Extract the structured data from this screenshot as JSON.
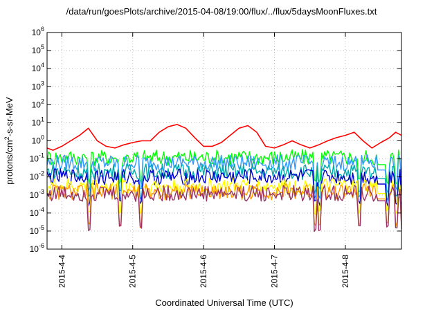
{
  "chart_data": {
    "type": "line",
    "title": "/data/run/goesPlots/archive/2015-04-08/19:00/flux/../flux/5daysMoonFluxes.txt",
    "xlabel": "Coordinated Universal Time (UTC)",
    "ylabel_parts": {
      "a": "protons/cm",
      "b": "2",
      "c": "-s-sr-MeV"
    },
    "yscale": "log",
    "ylim": [
      1e-06,
      1000000.0
    ],
    "y_ticks": [
      {
        "base": "10",
        "exp": "6"
      },
      {
        "base": "10",
        "exp": "5"
      },
      {
        "base": "10",
        "exp": "4"
      },
      {
        "base": "10",
        "exp": "3"
      },
      {
        "base": "10",
        "exp": "2"
      },
      {
        "base": "10",
        "exp": "1"
      },
      {
        "base": "10",
        "exp": "0"
      },
      {
        "base": "10",
        "exp": "-1"
      },
      {
        "base": "10",
        "exp": "-2"
      },
      {
        "base": "10",
        "exp": "-3"
      },
      {
        "base": "10",
        "exp": "-4"
      },
      {
        "base": "10",
        "exp": "-5"
      },
      {
        "base": "10",
        "exp": "-6"
      }
    ],
    "x_ticks": [
      "2015-4-4",
      "2015-4-5",
      "2015-4-6",
      "2015-4-7",
      "2015-4-8"
    ],
    "xlim": [
      "2015-04-03T19:00",
      "2015-04-08T19:00"
    ],
    "grid": true,
    "series": [
      {
        "color": "#ff0000",
        "x": [
          "2015-04-03T19:00",
          "2015-04-03T21:00",
          "2015-04-04T00:00",
          "2015-04-04T03:00",
          "2015-04-04T06:00",
          "2015-04-04T09:00",
          "2015-04-04T12:00",
          "2015-04-04T15:00",
          "2015-04-04T18:00",
          "2015-04-04T21:00",
          "2015-04-05T00:00",
          "2015-04-05T03:00",
          "2015-04-05T06:00",
          "2015-04-05T09:00",
          "2015-04-05T12:00",
          "2015-04-05T15:00",
          "2015-04-05T18:00",
          "2015-04-05T21:00",
          "2015-04-06T00:00",
          "2015-04-06T03:00",
          "2015-04-06T06:00",
          "2015-04-06T09:00",
          "2015-04-06T12:00",
          "2015-04-06T15:00",
          "2015-04-06T18:00",
          "2015-04-06T21:00",
          "2015-04-07T00:00",
          "2015-04-07T03:00",
          "2015-04-07T06:00",
          "2015-04-07T09:00",
          "2015-04-07T12:00",
          "2015-04-07T15:00",
          "2015-04-07T18:00",
          "2015-04-07T21:00",
          "2015-04-08T00:00",
          "2015-04-08T03:00",
          "2015-04-08T06:00",
          "2015-04-08T09:00",
          "2015-04-08T12:00",
          "2015-04-08T15:00",
          "2015-04-08T17:00",
          "2015-04-08T19:00"
        ],
        "y": [
          0.4,
          0.3,
          0.5,
          1.0,
          2.0,
          5.0,
          1.0,
          0.5,
          0.4,
          0.6,
          0.8,
          1.0,
          1.0,
          3.0,
          6.0,
          8.0,
          5.0,
          1.5,
          0.5,
          0.5,
          0.8,
          2.0,
          5.0,
          7.0,
          3.0,
          0.5,
          0.4,
          0.6,
          1.0,
          0.6,
          0.4,
          0.6,
          1.0,
          1.5,
          2.0,
          3.0,
          1.0,
          0.4,
          0.8,
          1.5,
          3.0,
          2.0
        ]
      },
      {
        "color": "#00ff00",
        "base": 0.12,
        "dip": 0.0025
      },
      {
        "color": "#3399ff",
        "base": 0.06,
        "dip": 0.0008
      },
      {
        "color": "#00aaaa",
        "base": 0.02,
        "dip": 0.0003
      },
      {
        "color": "#0000cc",
        "base": 0.01,
        "dip": 0.00015
      },
      {
        "color": "#ffff00",
        "base": 0.003,
        "dip": 5e-05
      },
      {
        "color": "#ff9900",
        "base": 0.0015,
        "dip": 1e-05
      },
      {
        "color": "#993366",
        "base": 0.0012,
        "dip": 6e-06
      }
    ]
  }
}
